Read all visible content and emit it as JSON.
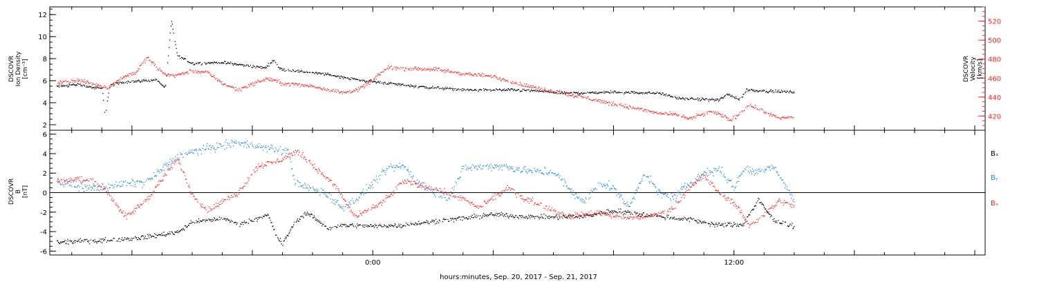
{
  "chart_data": {
    "colors": {
      "black": "#000000",
      "red": "#ff2020",
      "blue": "#1e8ae0"
    },
    "xlabel": "hours:minutes, Sep. 20, 2017 - Sep. 21, 2017",
    "x_range_hours": [
      -10.5,
      20
    ],
    "x_ticks": [
      {
        "value": 0,
        "label": "0:00"
      },
      {
        "value": 12,
        "label": "12:00"
      }
    ],
    "x_data_end_hours": 14.0,
    "panels": [
      {
        "id": "top",
        "type": "scatter",
        "left_label": [
          "DSCOVR",
          "Ion Density",
          "[cm⁻³]"
        ],
        "right_label": [
          "DSCOVR",
          "Velocity",
          "[km/s]"
        ],
        "left_axis": {
          "ylim": [
            1.5,
            12.7
          ],
          "ticks": [
            2,
            4,
            6,
            8,
            10,
            12
          ],
          "labels": [
            "2",
            "4",
            "6",
            "8",
            "10",
            "12"
          ]
        },
        "right_axis": {
          "ylim": [
            405,
            535
          ],
          "ticks": [
            420,
            440,
            460,
            480,
            500,
            520
          ],
          "labels": [
            "420",
            "440",
            "460",
            "480",
            "500",
            "520"
          ]
        },
        "series": [
          {
            "color": "black",
            "axis": "left",
            "knots": [
              [
                -10.5,
                5.5
              ],
              [
                -9.8,
                5.7
              ],
              [
                -9.3,
                5.4
              ],
              [
                -9.0,
                5.3
              ],
              [
                -8.9,
                2.8
              ],
              [
                -8.75,
                5.6
              ],
              [
                -8.3,
                5.9
              ],
              [
                -7.8,
                6.0
              ],
              [
                -7.2,
                6.1
              ],
              [
                -6.9,
                5.4
              ],
              [
                -6.7,
                11.5
              ],
              [
                -6.5,
                8.3
              ],
              [
                -6.0,
                7.6
              ],
              [
                -5.0,
                7.7
              ],
              [
                -4.2,
                7.4
              ],
              [
                -3.6,
                7.2
              ],
              [
                -3.3,
                7.9
              ],
              [
                -3.1,
                7.1
              ],
              [
                -2.5,
                6.9
              ],
              [
                -1.5,
                6.6
              ],
              [
                -0.5,
                6.1
              ],
              [
                0.5,
                5.8
              ],
              [
                1.5,
                5.5
              ],
              [
                3.0,
                5.2
              ],
              [
                4.5,
                5.2
              ],
              [
                5.5,
                5.1
              ],
              [
                6.5,
                4.9
              ],
              [
                8.0,
                5.0
              ],
              [
                9.5,
                4.9
              ],
              [
                10.2,
                4.4
              ],
              [
                11.5,
                4.3
              ],
              [
                11.8,
                4.8
              ],
              [
                12.2,
                4.3
              ],
              [
                12.4,
                5.2
              ],
              [
                13.0,
                5.1
              ],
              [
                14.0,
                5.0
              ]
            ],
            "noise": 0.18
          },
          {
            "color": "red",
            "axis": "right",
            "knots": [
              [
                -10.5,
                455
              ],
              [
                -9.8,
                458
              ],
              [
                -9.0,
                452
              ],
              [
                -8.8,
                450
              ],
              [
                -8.3,
                462
              ],
              [
                -7.9,
                466
              ],
              [
                -7.5,
                482
              ],
              [
                -7.0,
                466
              ],
              [
                -6.6,
                463
              ],
              [
                -6.0,
                468
              ],
              [
                -5.5,
                466
              ],
              [
                -5.0,
                455
              ],
              [
                -4.5,
                448
              ],
              [
                -4.2,
                452
              ],
              [
                -3.5,
                460
              ],
              [
                -3.0,
                455
              ],
              [
                -2.0,
                452
              ],
              [
                -1.0,
                445
              ],
              [
                -0.5,
                448
              ],
              [
                0.0,
                458
              ],
              [
                0.5,
                472
              ],
              [
                1.0,
                470
              ],
              [
                2.0,
                470
              ],
              [
                3.0,
                465
              ],
              [
                4.0,
                462
              ],
              [
                5.0,
                453
              ],
              [
                6.0,
                446
              ],
              [
                7.0,
                440
              ],
              [
                8.0,
                433
              ],
              [
                8.8,
                428
              ],
              [
                9.5,
                423
              ],
              [
                10.0,
                422
              ],
              [
                10.5,
                418
              ],
              [
                11.3,
                425
              ],
              [
                11.9,
                416
              ],
              [
                12.5,
                432
              ],
              [
                13.0,
                425
              ],
              [
                13.5,
                418
              ],
              [
                14.0,
                420
              ]
            ],
            "noise": 3.0
          }
        ]
      },
      {
        "id": "bottom",
        "type": "scatter",
        "left_label": [
          "DSCOVR",
          "B",
          "[nT]"
        ],
        "left_axis": {
          "ylim": [
            -6.4,
            6.4
          ],
          "ticks": [
            -6,
            -4,
            -2,
            0,
            2,
            4,
            6
          ],
          "labels": [
            "-6",
            "-4",
            "-2",
            "0",
            "2",
            "4",
            "6"
          ]
        },
        "zero_line": true,
        "legend": {
          "placement": "right",
          "entries": [
            {
              "label": "Bₓ",
              "color": "black"
            },
            {
              "label": "Bᵧ",
              "color": "blue"
            },
            {
              "label": "Bₓ",
              "color": "red"
            }
          ]
        },
        "series": [
          {
            "name": "Bₓ",
            "color": "black",
            "knots": [
              [
                -10.5,
                -5.1
              ],
              [
                -9.5,
                -4.9
              ],
              [
                -8.5,
                -4.8
              ],
              [
                -7.5,
                -4.5
              ],
              [
                -6.5,
                -4.0
              ],
              [
                -6.0,
                -3.0
              ],
              [
                -5.0,
                -2.6
              ],
              [
                -4.5,
                -3.2
              ],
              [
                -4.0,
                -2.8
              ],
              [
                -3.5,
                -2.2
              ],
              [
                -3.2,
                -4.5
              ],
              [
                -3.0,
                -5.2
              ],
              [
                -2.6,
                -3.0
              ],
              [
                -2.2,
                -2.0
              ],
              [
                -1.5,
                -3.6
              ],
              [
                -1.0,
                -3.3
              ],
              [
                0.0,
                -3.4
              ],
              [
                1.0,
                -3.3
              ],
              [
                2.0,
                -2.9
              ],
              [
                3.0,
                -2.6
              ],
              [
                4.0,
                -2.2
              ],
              [
                5.0,
                -2.4
              ],
              [
                6.0,
                -2.5
              ],
              [
                7.0,
                -2.4
              ],
              [
                8.0,
                -1.8
              ],
              [
                9.0,
                -2.2
              ],
              [
                10.0,
                -2.6
              ],
              [
                10.5,
                -2.7
              ],
              [
                11.5,
                -3.3
              ],
              [
                12.3,
                -3.2
              ],
              [
                12.8,
                -0.7
              ],
              [
                13.3,
                -2.8
              ],
              [
                14.0,
                -3.4
              ]
            ],
            "noise": 0.35
          },
          {
            "name": "Bᵧ",
            "color": "blue",
            "knots": [
              [
                -10.5,
                1.2
              ],
              [
                -9.5,
                0.5
              ],
              [
                -8.5,
                0.8
              ],
              [
                -7.5,
                1.2
              ],
              [
                -6.5,
                3.8
              ],
              [
                -5.5,
                4.6
              ],
              [
                -4.5,
                5.2
              ],
              [
                -3.5,
                4.6
              ],
              [
                -2.8,
                4.2
              ],
              [
                -2.6,
                1.0
              ],
              [
                -2.0,
                0.4
              ],
              [
                -1.5,
                -0.2
              ],
              [
                -1.0,
                -1.5
              ],
              [
                -0.5,
                -0.5
              ],
              [
                0.0,
                1.0
              ],
              [
                0.5,
                2.5
              ],
              [
                1.0,
                2.8
              ],
              [
                1.5,
                1.0
              ],
              [
                2.0,
                0.2
              ],
              [
                2.5,
                -0.5
              ],
              [
                3.0,
                2.5
              ],
              [
                4.0,
                2.8
              ],
              [
                5.0,
                2.4
              ],
              [
                5.5,
                2.1
              ],
              [
                6.0,
                2.2
              ],
              [
                6.5,
                0.5
              ],
              [
                7.0,
                -1.0
              ],
              [
                7.5,
                1.0
              ],
              [
                8.0,
                0.5
              ],
              [
                8.5,
                -1.5
              ],
              [
                9.0,
                2.0
              ],
              [
                9.5,
                0.0
              ],
              [
                10.0,
                -0.5
              ],
              [
                10.5,
                1.0
              ],
              [
                11.0,
                2.0
              ],
              [
                11.5,
                2.5
              ],
              [
                12.0,
                0.5
              ],
              [
                12.3,
                2.5
              ],
              [
                12.8,
                2.2
              ],
              [
                13.3,
                2.8
              ],
              [
                14.0,
                -0.8
              ]
            ],
            "noise": 0.6
          },
          {
            "name": "Bₓ",
            "color": "red",
            "knots": [
              [
                -10.5,
                1.2
              ],
              [
                -9.8,
                1.4
              ],
              [
                -9.3,
                1.2
              ],
              [
                -8.8,
                0.0
              ],
              [
                -8.2,
                -2.5
              ],
              [
                -7.5,
                -0.6
              ],
              [
                -6.5,
                3.5
              ],
              [
                -6.0,
                -0.2
              ],
              [
                -5.5,
                -1.8
              ],
              [
                -4.5,
                0.0
              ],
              [
                -3.8,
                2.8
              ],
              [
                -3.2,
                3.2
              ],
              [
                -2.5,
                4.3
              ],
              [
                -2.0,
                2.8
              ],
              [
                -1.6,
                1.7
              ],
              [
                -1.2,
                0.5
              ],
              [
                -0.6,
                -2.5
              ],
              [
                0.0,
                -1.5
              ],
              [
                0.5,
                -0.5
              ],
              [
                1.0,
                1.2
              ],
              [
                2.0,
                0.5
              ],
              [
                3.0,
                -0.6
              ],
              [
                3.5,
                -1.5
              ],
              [
                4.5,
                0.5
              ],
              [
                5.0,
                -0.5
              ],
              [
                6.0,
                -1.8
              ],
              [
                6.5,
                -2.4
              ],
              [
                7.5,
                -2.0
              ],
              [
                8.5,
                -2.6
              ],
              [
                9.5,
                -2.2
              ],
              [
                10.0,
                -1.5
              ],
              [
                10.5,
                0.5
              ],
              [
                11.0,
                1.8
              ],
              [
                11.5,
                0.0
              ],
              [
                12.0,
                -1.0
              ],
              [
                12.5,
                -3.3
              ],
              [
                13.0,
                -2.2
              ],
              [
                13.5,
                -0.8
              ],
              [
                14.0,
                -1.4
              ]
            ],
            "noise": 0.45
          }
        ]
      }
    ]
  }
}
